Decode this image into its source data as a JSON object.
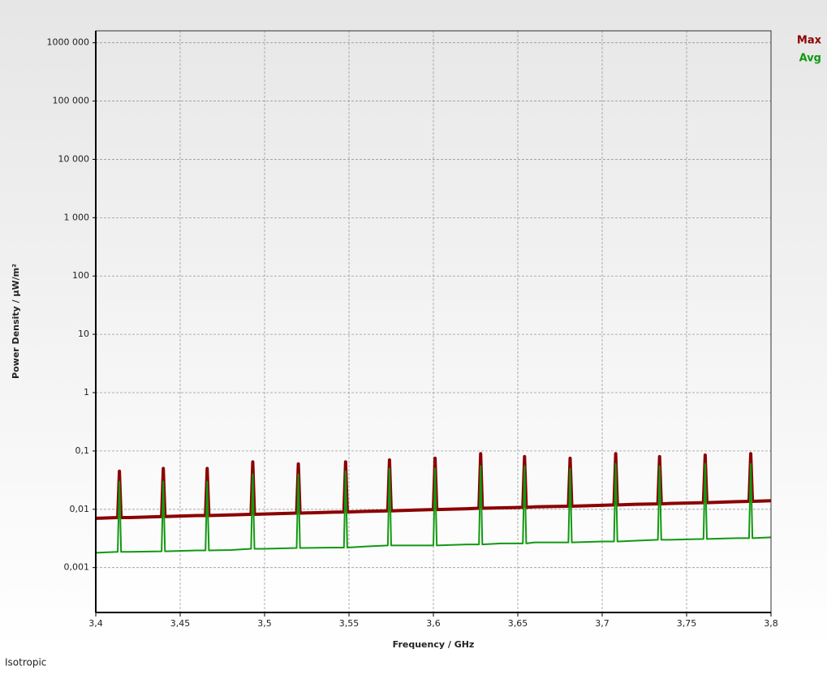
{
  "chart_data": {
    "type": "line",
    "ylabel": "Power Density / µW/m²",
    "xlabel": "Frequency / GHz",
    "footer": "Isotropic",
    "log_y": true,
    "grid": true,
    "legend": "top-right",
    "xlim": [
      3.4,
      3.8
    ],
    "xticks": [
      {
        "value": 3.4,
        "label": "3,4"
      },
      {
        "value": 3.45,
        "label": "3,45"
      },
      {
        "value": 3.5,
        "label": "3,5"
      },
      {
        "value": 3.55,
        "label": "3,55"
      },
      {
        "value": 3.6,
        "label": "3,6"
      },
      {
        "value": 3.65,
        "label": "3,65"
      },
      {
        "value": 3.7,
        "label": "3,7"
      },
      {
        "value": 3.75,
        "label": "3,75"
      },
      {
        "value": 3.8,
        "label": "3,8"
      }
    ],
    "ylim": [
      0.00017,
      1600000
    ],
    "yticks": [
      {
        "value": 0.001,
        "label": "0,001"
      },
      {
        "value": 0.01,
        "label": "0,01"
      },
      {
        "value": 0.1,
        "label": "0,1"
      },
      1,
      10,
      100,
      {
        "value": 1000,
        "label": "1 000"
      },
      {
        "value": 10000,
        "label": "10 000"
      },
      {
        "value": 100000,
        "label": "100 000"
      },
      {
        "value": 1000000,
        "label": "1000 000"
      }
    ],
    "x": [
      3.4,
      3.413,
      3.414,
      3.415,
      3.42,
      3.439,
      3.44,
      3.441,
      3.46,
      3.465,
      3.466,
      3.467,
      3.48,
      3.492,
      3.493,
      3.494,
      3.5,
      3.519,
      3.52,
      3.521,
      3.54,
      3.547,
      3.548,
      3.549,
      3.56,
      3.573,
      3.574,
      3.575,
      3.58,
      3.6,
      3.601,
      3.602,
      3.62,
      3.627,
      3.628,
      3.629,
      3.64,
      3.653,
      3.654,
      3.655,
      3.66,
      3.68,
      3.681,
      3.682,
      3.7,
      3.707,
      3.708,
      3.709,
      3.72,
      3.733,
      3.734,
      3.735,
      3.74,
      3.76,
      3.761,
      3.762,
      3.78,
      3.787,
      3.788,
      3.789,
      3.8
    ],
    "series": [
      {
        "name": "Max",
        "color": "#8b0000",
        "values": [
          0.007,
          0.0072,
          0.045,
          0.0072,
          0.0072,
          0.0075,
          0.05,
          0.0075,
          0.0078,
          0.0078,
          0.05,
          0.0078,
          0.008,
          0.0082,
          0.065,
          0.0082,
          0.0083,
          0.0086,
          0.06,
          0.0086,
          0.0089,
          0.009,
          0.065,
          0.009,
          0.0092,
          0.0094,
          0.07,
          0.0094,
          0.0095,
          0.0099,
          0.075,
          0.0099,
          0.0102,
          0.0104,
          0.09,
          0.0104,
          0.0106,
          0.0108,
          0.08,
          0.0108,
          0.011,
          0.0113,
          0.075,
          0.0113,
          0.0117,
          0.0119,
          0.09,
          0.0119,
          0.0122,
          0.0124,
          0.08,
          0.0124,
          0.0126,
          0.013,
          0.085,
          0.013,
          0.0135,
          0.0137,
          0.09,
          0.0137,
          0.014
        ]
      },
      {
        "name": "Avg",
        "color": "#119911",
        "values": [
          0.0018,
          0.00186,
          0.03,
          0.00186,
          0.00186,
          0.0019,
          0.03,
          0.0019,
          0.00197,
          0.00197,
          0.03,
          0.00197,
          0.002,
          0.0021,
          0.04,
          0.0021,
          0.0021,
          0.00217,
          0.04,
          0.00217,
          0.0022,
          0.0022,
          0.045,
          0.0022,
          0.0023,
          0.0024,
          0.05,
          0.0024,
          0.0024,
          0.0024,
          0.05,
          0.0024,
          0.0025,
          0.0025,
          0.055,
          0.0025,
          0.0026,
          0.0026,
          0.055,
          0.0026,
          0.0027,
          0.0027,
          0.05,
          0.0027,
          0.0028,
          0.0028,
          0.06,
          0.0028,
          0.0029,
          0.003,
          0.055,
          0.003,
          0.003,
          0.0031,
          0.06,
          0.0031,
          0.0032,
          0.0032,
          0.06,
          0.0032,
          0.0033
        ]
      }
    ]
  }
}
